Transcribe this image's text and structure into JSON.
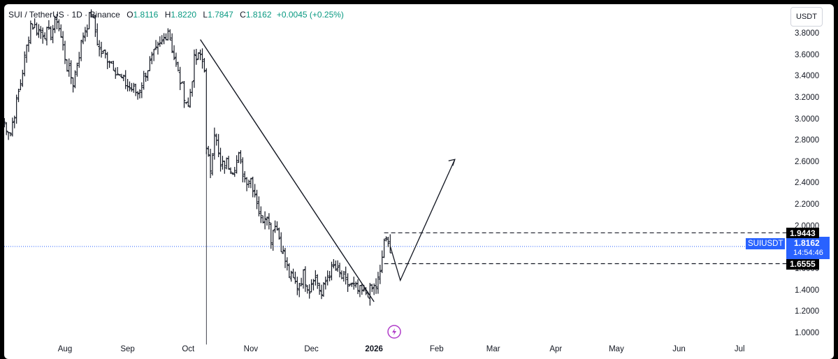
{
  "legend": {
    "symbol": "SUI / TetherUS · 1D · Binance",
    "o_label": "O",
    "o": "1.8116",
    "h_label": "H",
    "h": "1.8220",
    "l_label": "L",
    "l": "1.7847",
    "c_label": "C",
    "c": "1.8162",
    "change": "+0.0045 (+0.25%)"
  },
  "currency": "USDT",
  "symbol_tag": "SUIUSDT",
  "countdown": "14:54:46",
  "colors": {
    "up": "#089981",
    "down": "#f23645",
    "bar": "#131722",
    "accent": "#2962ff",
    "event_icon": "#b03cc9"
  },
  "event_icon": "lightning-icon",
  "chart_data": {
    "type": "ohlc",
    "title": "",
    "ylim": [
      0.88,
      3.98
    ],
    "y_ticks": [
      "3.8000",
      "3.6000",
      "3.4000",
      "3.2000",
      "3.0000",
      "2.8000",
      "2.6000",
      "2.4000",
      "2.2000",
      "2.0000",
      "1.8000",
      "1.6000",
      "1.4000",
      "1.2000",
      "1.0000"
    ],
    "x_ticks": [
      {
        "label": "Aug",
        "date": "2025-08-01"
      },
      {
        "label": "Sep",
        "date": "2025-09-01"
      },
      {
        "label": "Oct",
        "date": "2025-10-01"
      },
      {
        "label": "Nov",
        "date": "2025-11-01"
      },
      {
        "label": "Dec",
        "date": "2025-12-01"
      },
      {
        "label": "2026",
        "date": "2026-01-01",
        "bold": true
      },
      {
        "label": "Feb",
        "date": "2026-02-01"
      },
      {
        "label": "Mar",
        "date": "2026-03-01"
      },
      {
        "label": "Apr",
        "date": "2026-04-01"
      },
      {
        "label": "May",
        "date": "2026-05-01"
      },
      {
        "label": "Jun",
        "date": "2026-06-01"
      },
      {
        "label": "Jul",
        "date": "2026-07-01"
      }
    ],
    "price_anchors": [
      [
        "2025-07-01",
        3.0
      ],
      [
        "2025-07-05",
        2.88
      ],
      [
        "2025-07-10",
        3.35
      ],
      [
        "2025-07-15",
        3.9
      ],
      [
        "2025-07-20",
        3.82
      ],
      [
        "2025-07-25",
        3.8
      ],
      [
        "2025-07-28",
        3.95
      ],
      [
        "2025-08-02",
        3.5
      ],
      [
        "2025-08-05",
        3.35
      ],
      [
        "2025-08-10",
        3.8
      ],
      [
        "2025-08-14",
        4.0
      ],
      [
        "2025-08-18",
        3.65
      ],
      [
        "2025-08-24",
        3.55
      ],
      [
        "2025-08-28",
        3.4
      ],
      [
        "2025-09-02",
        3.3
      ],
      [
        "2025-09-06",
        3.25
      ],
      [
        "2025-09-10",
        3.45
      ],
      [
        "2025-09-14",
        3.6
      ],
      [
        "2025-09-18",
        3.72
      ],
      [
        "2025-09-21",
        3.85
      ],
      [
        "2025-09-25",
        3.5
      ],
      [
        "2025-09-28",
        3.3
      ],
      [
        "2025-10-01",
        3.12
      ],
      [
        "2025-10-04",
        3.55
      ],
      [
        "2025-10-07",
        3.6
      ],
      [
        "2025-10-09",
        3.5
      ],
      [
        "2025-10-10",
        2.7
      ],
      [
        "2025-10-12",
        2.55
      ],
      [
        "2025-10-14",
        2.9
      ],
      [
        "2025-10-17",
        2.55
      ],
      [
        "2025-10-20",
        2.6
      ],
      [
        "2025-10-23",
        2.55
      ],
      [
        "2025-10-26",
        2.65
      ],
      [
        "2025-10-29",
        2.45
      ],
      [
        "2025-11-01",
        2.45
      ],
      [
        "2025-11-04",
        2.25
      ],
      [
        "2025-11-06",
        2.05
      ],
      [
        "2025-11-09",
        2.15
      ],
      [
        "2025-11-11",
        1.9
      ],
      [
        "2025-11-13",
        2.05
      ],
      [
        "2025-11-17",
        1.75
      ],
      [
        "2025-11-20",
        1.55
      ],
      [
        "2025-11-24",
        1.45
      ],
      [
        "2025-11-27",
        1.55
      ],
      [
        "2025-11-30",
        1.42
      ],
      [
        "2025-12-02",
        1.55
      ],
      [
        "2025-12-04",
        1.48
      ],
      [
        "2025-12-06",
        1.36
      ],
      [
        "2025-12-09",
        1.55
      ],
      [
        "2025-12-12",
        1.62
      ],
      [
        "2025-12-15",
        1.55
      ],
      [
        "2025-12-18",
        1.48
      ],
      [
        "2025-12-21",
        1.45
      ],
      [
        "2025-12-24",
        1.4
      ],
      [
        "2025-12-27",
        1.38
      ],
      [
        "2025-12-30",
        1.4
      ],
      [
        "2026-01-02",
        1.45
      ],
      [
        "2026-01-04",
        1.55
      ],
      [
        "2026-01-06",
        1.88
      ],
      [
        "2026-01-08",
        1.82
      ],
      [
        "2026-01-09",
        1.81
      ]
    ],
    "trendline": {
      "from": [
        "2025-10-07",
        3.75
      ],
      "to": [
        "2026-01-01",
        1.3
      ]
    },
    "forecast_path": [
      [
        "2026-01-09",
        1.82
      ],
      [
        "2026-01-14",
        1.5
      ],
      [
        "2026-02-10",
        2.63
      ]
    ],
    "levels": [
      {
        "price": 1.9443,
        "label": "1.9443"
      },
      {
        "price": 1.6555,
        "label": "1.6555"
      }
    ],
    "last_price": {
      "value": 1.8162,
      "label": "1.8162"
    },
    "event_date": "2026-01-11"
  }
}
